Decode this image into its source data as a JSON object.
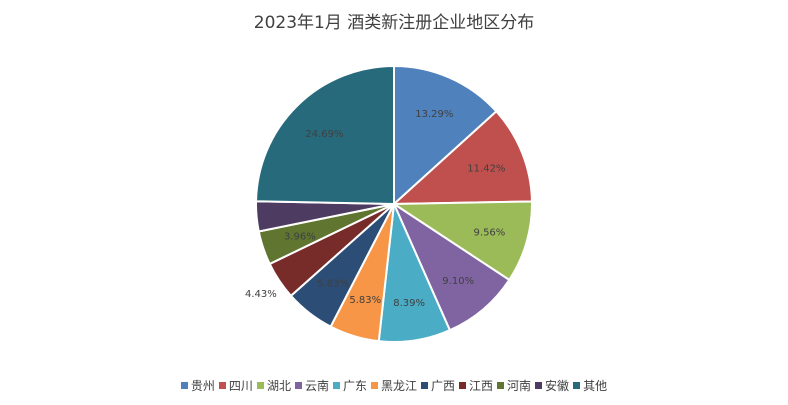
{
  "chart_data": {
    "type": "pie",
    "title": "2023年1月 酒类新注册企业地区分布",
    "slices": [
      {
        "name": "贵州",
        "value": 13.29,
        "label": "13.29%",
        "color": "#4F81BD"
      },
      {
        "name": "四川",
        "value": 11.42,
        "label": "11.42%",
        "color": "#C0504D"
      },
      {
        "name": "湖北",
        "value": 9.56,
        "label": "9.56%",
        "color": "#9BBB59"
      },
      {
        "name": "云南",
        "value": 9.1,
        "label": "9.10%",
        "color": "#8064A2"
      },
      {
        "name": "广东",
        "value": 8.39,
        "label": "8.39%",
        "color": "#4BACC6"
      },
      {
        "name": "黑龙江",
        "value": 5.83,
        "label": "5.83%",
        "color": "#F79646"
      },
      {
        "name": "广西",
        "value": 5.83,
        "label": "5.83%",
        "color": "#2C4D75"
      },
      {
        "name": "江西",
        "value": 4.43,
        "label": "4.43%",
        "color": "#772C2A"
      },
      {
        "name": "河南",
        "value": 3.96,
        "label": "3.96%",
        "color": "#5F7530"
      },
      {
        "name": "安徽",
        "value": 3.5,
        "label": "",
        "color": "#4D3B62"
      },
      {
        "name": "其他",
        "value": 24.69,
        "label": "24.69%",
        "color": "#276A7C"
      }
    ],
    "legend_position": "bottom"
  }
}
